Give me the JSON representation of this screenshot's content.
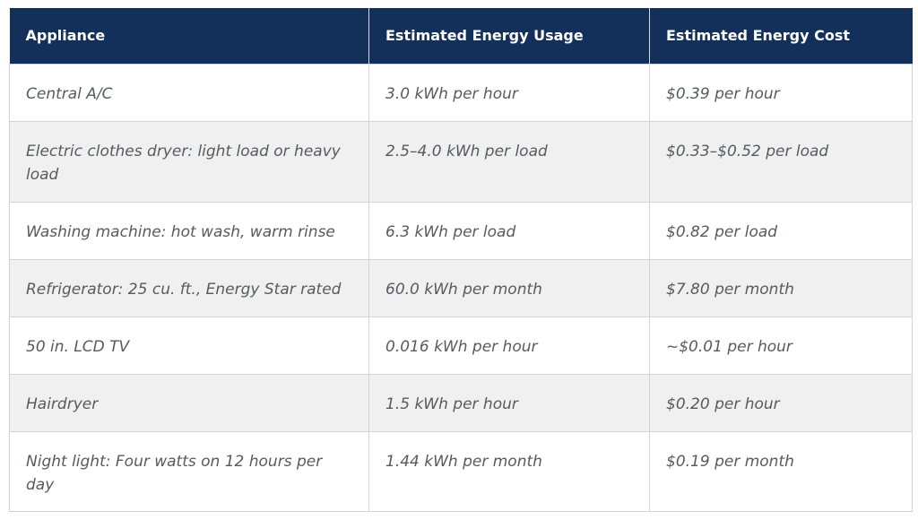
{
  "table": {
    "headers": [
      "Appliance",
      "Estimated Energy Usage",
      "Estimated Energy Cost"
    ],
    "rows": [
      [
        "Central A/C",
        "3.0 kWh per hour",
        "$0.39 per hour"
      ],
      [
        "Electric clothes dryer: light load or heavy load",
        "2.5–4.0 kWh per load",
        "$0.33–$0.52 per load"
      ],
      [
        "Washing machine: hot wash, warm rinse",
        "6.3 kWh per load",
        "$0.82 per load"
      ],
      [
        "Refrigerator: 25 cu. ft., Energy Star rated",
        "60.0 kWh per month",
        "$7.80 per month"
      ],
      [
        "50 in. LCD TV",
        "0.016 kWh per hour",
        "~$0.01 per hour"
      ],
      [
        "Hairdryer",
        "1.5 kWh per hour",
        "$0.20 per hour"
      ],
      [
        "Night light: Four watts on 12 hours per day",
        "1.44 kWh per month",
        "$0.19 per month"
      ]
    ]
  },
  "colors": {
    "header_bg": "#12305a",
    "header_text": "#ffffff",
    "row_alt_bg": "#f0f0f0",
    "cell_text": "#555b61"
  }
}
